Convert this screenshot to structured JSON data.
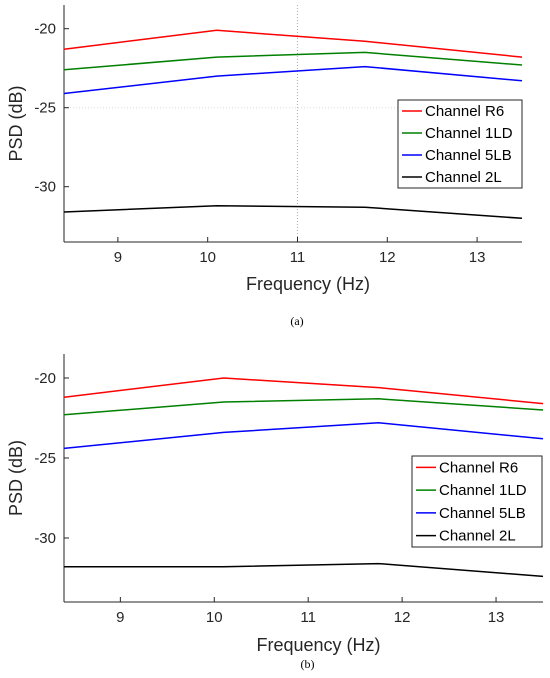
{
  "chart_data": [
    {
      "type": "line",
      "caption": "(a)",
      "xlabel": "Frequency (Hz)",
      "ylabel": "PSD (dB)",
      "xlim": [
        8.4,
        13.5
      ],
      "ylim": [
        -33.5,
        -18.5
      ],
      "xticks": [
        "9",
        "10",
        "11",
        "12",
        "13"
      ],
      "yticks": [
        "-20",
        "-25",
        "-30"
      ],
      "grid": "sparse dotted",
      "legend_position": "right",
      "x": [
        8.4,
        10.1,
        11.75,
        13.5
      ],
      "series": [
        {
          "name": "Channel R6",
          "color": "#ff0000",
          "values": [
            -21.3,
            -20.1,
            -20.8,
            -21.8
          ]
        },
        {
          "name": "Channel 1LD",
          "color": "#008000",
          "values": [
            -22.6,
            -21.8,
            -21.5,
            -22.3
          ]
        },
        {
          "name": "Channel 5LB",
          "color": "#0000ff",
          "values": [
            -24.1,
            -23.0,
            -22.4,
            -23.3
          ]
        },
        {
          "name": "Channel 2L",
          "color": "#000000",
          "values": [
            -31.6,
            -31.2,
            -31.3,
            -32.0
          ]
        }
      ]
    },
    {
      "type": "line",
      "caption": "(b)",
      "xlabel": "Frequency (Hz)",
      "ylabel": "PSD (dB)",
      "xlim": [
        8.4,
        13.5
      ],
      "ylim": [
        -34,
        -18.5
      ],
      "xticks": [
        "9",
        "10",
        "11",
        "12",
        "13"
      ],
      "yticks": [
        "-20",
        "-25",
        "-30"
      ],
      "grid": "off",
      "legend_position": "right",
      "x": [
        8.4,
        10.1,
        11.75,
        13.5
      ],
      "series": [
        {
          "name": "Channel R6",
          "color": "#ff0000",
          "values": [
            -21.2,
            -20.0,
            -20.6,
            -21.6
          ]
        },
        {
          "name": "Channel 1LD",
          "color": "#008000",
          "values": [
            -22.3,
            -21.5,
            -21.3,
            -22.0
          ]
        },
        {
          "name": "Channel 5LB",
          "color": "#0000ff",
          "values": [
            -24.4,
            -23.4,
            -22.8,
            -23.8
          ]
        },
        {
          "name": "Channel 2L",
          "color": "#000000",
          "values": [
            -31.8,
            -31.8,
            -31.6,
            -32.4
          ]
        }
      ]
    }
  ]
}
